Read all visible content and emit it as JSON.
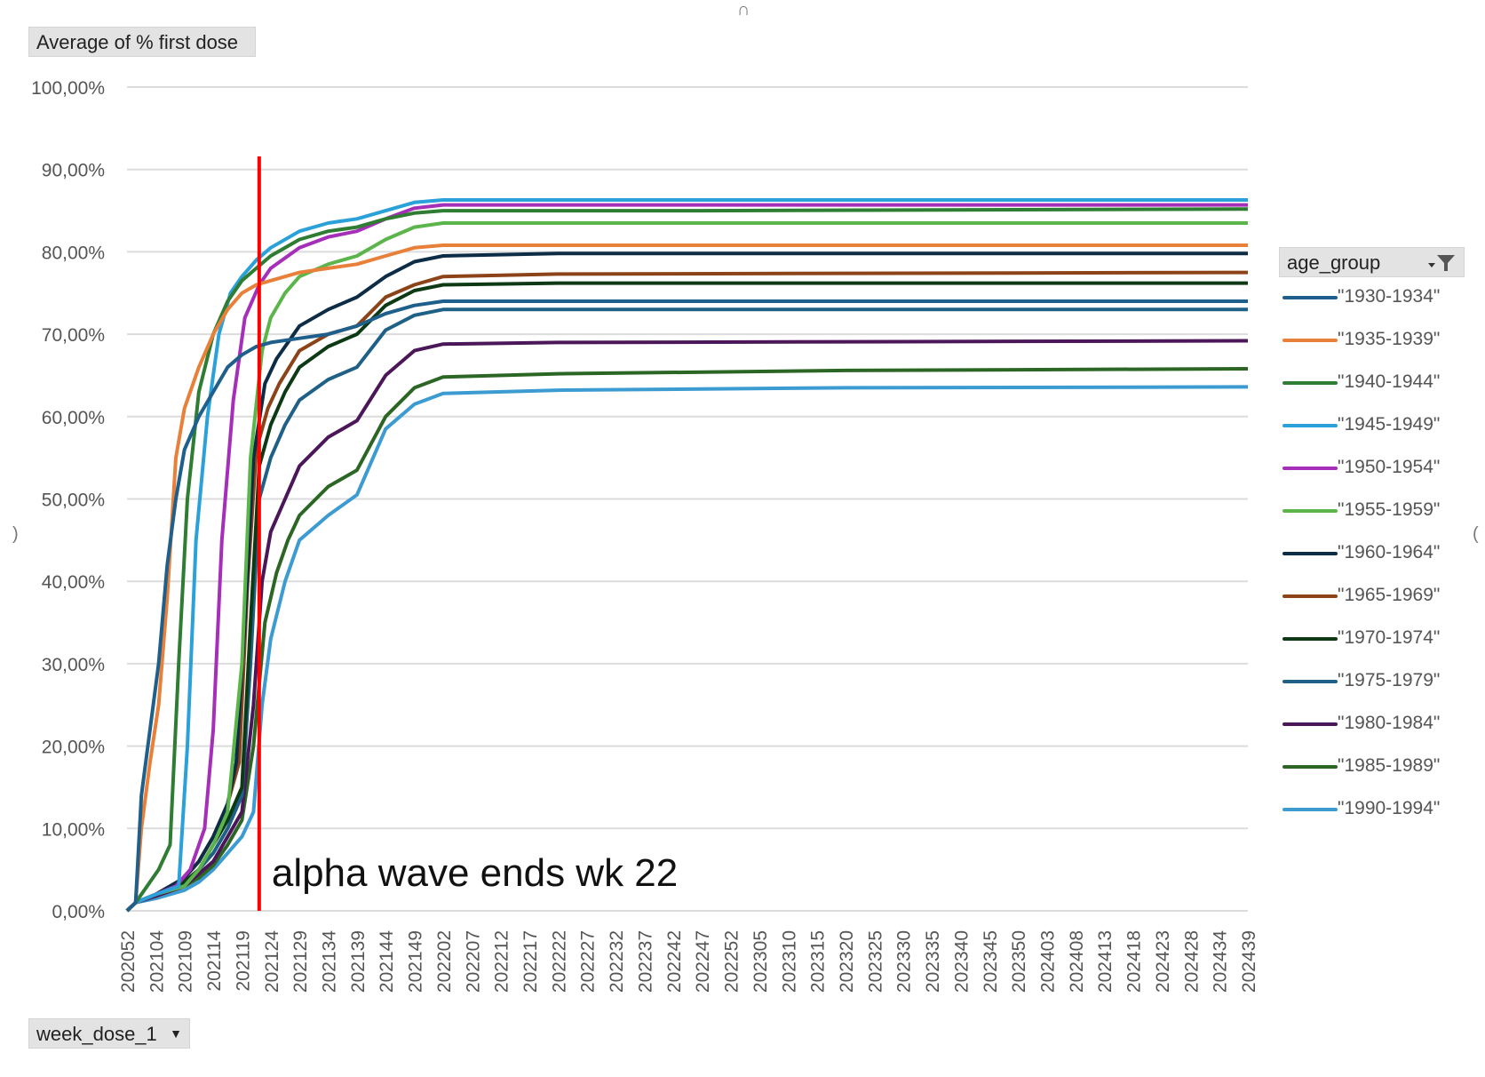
{
  "measure_label": "Average of % first dose",
  "xfield_label": "week_dose_1",
  "legend_title": "age_group",
  "annotation_text": "alpha wave ends wk 22",
  "chart_data": {
    "type": "line",
    "title": "",
    "xlabel": "",
    "ylabel": "",
    "ylim": [
      0,
      100
    ],
    "y_ticks": [
      "0,00%",
      "10,00%",
      "20,00%",
      "30,00%",
      "40,00%",
      "50,00%",
      "60,00%",
      "70,00%",
      "80,00%",
      "90,00%",
      "100,00%"
    ],
    "x_tick_labels": [
      "202052",
      "202104",
      "202109",
      "202114",
      "202119",
      "202124",
      "202129",
      "202134",
      "202139",
      "202144",
      "202149",
      "202202",
      "202207",
      "202212",
      "202217",
      "202222",
      "202227",
      "202232",
      "202237",
      "202242",
      "202247",
      "202252",
      "202305",
      "202310",
      "202315",
      "202320",
      "202325",
      "202330",
      "202335",
      "202340",
      "202345",
      "202350",
      "202403",
      "202408",
      "202413",
      "202418",
      "202423",
      "202428",
      "202434",
      "202439"
    ],
    "x_range_index": [
      0,
      39
    ],
    "grid": true,
    "legend_position": "right",
    "annotation": {
      "text": "alpha wave ends wk 22",
      "x_index": 4.6,
      "color": "#ff0000"
    },
    "series": [
      {
        "name": "\"1930-1934\"",
        "color": "#1f5f8b",
        "points": [
          [
            0,
            0
          ],
          [
            0.3,
            1
          ],
          [
            0.5,
            14
          ],
          [
            0.8,
            22
          ],
          [
            1.1,
            30
          ],
          [
            1.4,
            42
          ],
          [
            1.7,
            50
          ],
          [
            2,
            56
          ],
          [
            2.5,
            60
          ],
          [
            3,
            63
          ],
          [
            3.5,
            66
          ],
          [
            4,
            67.5
          ],
          [
            4.5,
            68.5
          ],
          [
            5,
            69
          ],
          [
            6,
            69.5
          ],
          [
            7,
            70
          ],
          [
            8,
            71
          ],
          [
            9,
            72.5
          ],
          [
            10,
            73.5
          ],
          [
            11,
            74
          ],
          [
            15,
            74
          ],
          [
            39,
            74
          ]
        ]
      },
      {
        "name": "\"1935-1939\"",
        "color": "#e8803a",
        "points": [
          [
            0,
            0
          ],
          [
            0.3,
            1
          ],
          [
            0.5,
            10
          ],
          [
            0.8,
            18
          ],
          [
            1.1,
            25
          ],
          [
            1.4,
            38
          ],
          [
            1.7,
            55
          ],
          [
            2,
            61
          ],
          [
            2.5,
            66
          ],
          [
            3,
            70
          ],
          [
            3.5,
            73
          ],
          [
            4,
            75
          ],
          [
            4.5,
            76
          ],
          [
            5,
            76.5
          ],
          [
            6,
            77.5
          ],
          [
            7,
            78
          ],
          [
            8,
            78.5
          ],
          [
            9,
            79.5
          ],
          [
            10,
            80.5
          ],
          [
            11,
            80.8
          ],
          [
            15,
            80.8
          ],
          [
            39,
            80.8
          ]
        ]
      },
      {
        "name": "\"1940-1944\"",
        "color": "#2e7d32",
        "points": [
          [
            0,
            0
          ],
          [
            0.3,
            1
          ],
          [
            0.7,
            3
          ],
          [
            1.1,
            5
          ],
          [
            1.5,
            8
          ],
          [
            1.8,
            30
          ],
          [
            2.1,
            50
          ],
          [
            2.5,
            63
          ],
          [
            3,
            70
          ],
          [
            3.5,
            74
          ],
          [
            4,
            76.5
          ],
          [
            4.5,
            78
          ],
          [
            5,
            79.5
          ],
          [
            6,
            81.5
          ],
          [
            7,
            82.5
          ],
          [
            8,
            83
          ],
          [
            9,
            84
          ],
          [
            10,
            84.7
          ],
          [
            11,
            85
          ],
          [
            20,
            85
          ],
          [
            39,
            85.2
          ]
        ]
      },
      {
        "name": "\"1945-1949\"",
        "color": "#2aa1d8",
        "points": [
          [
            0,
            0
          ],
          [
            0.3,
            1
          ],
          [
            1,
            2
          ],
          [
            1.8,
            3
          ],
          [
            2.1,
            20
          ],
          [
            2.4,
            45
          ],
          [
            2.8,
            60
          ],
          [
            3.2,
            70
          ],
          [
            3.6,
            75
          ],
          [
            4,
            77
          ],
          [
            4.5,
            79
          ],
          [
            5,
            80.5
          ],
          [
            6,
            82.5
          ],
          [
            7,
            83.5
          ],
          [
            8,
            84
          ],
          [
            9,
            85
          ],
          [
            10,
            86
          ],
          [
            11,
            86.3
          ],
          [
            39,
            86.3
          ]
        ]
      },
      {
        "name": "\"1950-1954\"",
        "color": "#a52fb8",
        "points": [
          [
            0,
            0
          ],
          [
            0.3,
            1
          ],
          [
            1,
            2
          ],
          [
            1.7,
            3
          ],
          [
            2.2,
            5
          ],
          [
            2.7,
            10
          ],
          [
            3.0,
            22
          ],
          [
            3.3,
            45
          ],
          [
            3.7,
            62
          ],
          [
            4.1,
            72
          ],
          [
            4.6,
            76
          ],
          [
            5,
            78
          ],
          [
            6,
            80.5
          ],
          [
            7,
            81.8
          ],
          [
            8,
            82.5
          ],
          [
            9,
            84
          ],
          [
            10,
            85.3
          ],
          [
            11,
            85.7
          ],
          [
            39,
            85.7
          ]
        ]
      },
      {
        "name": "\"1955-1959\"",
        "color": "#5cb54a",
        "points": [
          [
            0,
            0
          ],
          [
            0.3,
            1
          ],
          [
            1,
            2
          ],
          [
            2,
            3
          ],
          [
            2.5,
            5
          ],
          [
            3,
            8
          ],
          [
            3.5,
            12
          ],
          [
            4,
            30
          ],
          [
            4.3,
            55
          ],
          [
            4.7,
            68
          ],
          [
            5,
            72
          ],
          [
            5.5,
            75
          ],
          [
            6,
            77
          ],
          [
            7,
            78.5
          ],
          [
            8,
            79.5
          ],
          [
            9,
            81.5
          ],
          [
            10,
            83
          ],
          [
            11,
            83.5
          ],
          [
            39,
            83.5
          ]
        ]
      },
      {
        "name": "\"1960-1964\"",
        "color": "#0d2c45",
        "points": [
          [
            0,
            0
          ],
          [
            0.3,
            1
          ],
          [
            1,
            2
          ],
          [
            2,
            4
          ],
          [
            2.5,
            6
          ],
          [
            3,
            9
          ],
          [
            3.5,
            13
          ],
          [
            3.8,
            18
          ],
          [
            4.1,
            35
          ],
          [
            4.4,
            55
          ],
          [
            4.8,
            64
          ],
          [
            5.2,
            67
          ],
          [
            6,
            71
          ],
          [
            7,
            73
          ],
          [
            8,
            74.5
          ],
          [
            9,
            77
          ],
          [
            10,
            78.8
          ],
          [
            11,
            79.5
          ],
          [
            15,
            79.8
          ],
          [
            39,
            79.8
          ]
        ]
      },
      {
        "name": "\"1965-1969\"",
        "color": "#8c4318",
        "points": [
          [
            0,
            0
          ],
          [
            0.3,
            1
          ],
          [
            1,
            2
          ],
          [
            2,
            4
          ],
          [
            2.5,
            6
          ],
          [
            3,
            9
          ],
          [
            3.5,
            13
          ],
          [
            3.9,
            18
          ],
          [
            4.2,
            40
          ],
          [
            4.5,
            56
          ],
          [
            4.9,
            61
          ],
          [
            5.3,
            64
          ],
          [
            6,
            68
          ],
          [
            7,
            70
          ],
          [
            8,
            71
          ],
          [
            9,
            74.5
          ],
          [
            10,
            76
          ],
          [
            11,
            77
          ],
          [
            15,
            77.3
          ],
          [
            39,
            77.5
          ]
        ]
      },
      {
        "name": "\"1970-1974\"",
        "color": "#0d3a14",
        "points": [
          [
            0,
            0
          ],
          [
            0.3,
            1
          ],
          [
            1,
            2
          ],
          [
            2,
            3.5
          ],
          [
            2.5,
            5
          ],
          [
            3,
            8
          ],
          [
            3.5,
            11
          ],
          [
            4,
            15
          ],
          [
            4.3,
            35
          ],
          [
            4.6,
            54
          ],
          [
            5,
            59
          ],
          [
            5.5,
            63
          ],
          [
            6,
            66
          ],
          [
            7,
            68.5
          ],
          [
            8,
            70
          ],
          [
            9,
            73.5
          ],
          [
            10,
            75.3
          ],
          [
            11,
            76
          ],
          [
            15,
            76.2
          ],
          [
            39,
            76.2
          ]
        ]
      },
      {
        "name": "\"1975-1979\"",
        "color": "#1f6186",
        "points": [
          [
            0,
            0
          ],
          [
            0.3,
            1
          ],
          [
            1,
            2
          ],
          [
            2,
            3.5
          ],
          [
            2.5,
            5
          ],
          [
            3,
            7
          ],
          [
            3.5,
            10
          ],
          [
            4,
            14
          ],
          [
            4.3,
            30
          ],
          [
            4.6,
            50
          ],
          [
            5,
            55
          ],
          [
            5.5,
            59
          ],
          [
            6,
            62
          ],
          [
            7,
            64.5
          ],
          [
            8,
            66
          ],
          [
            9,
            70.5
          ],
          [
            10,
            72.3
          ],
          [
            11,
            73
          ],
          [
            39,
            73
          ]
        ]
      },
      {
        "name": "\"1980-1984\"",
        "color": "#4b1758",
        "points": [
          [
            0,
            0
          ],
          [
            0.3,
            1
          ],
          [
            1,
            1.8
          ],
          [
            2,
            3
          ],
          [
            2.5,
            4.5
          ],
          [
            3,
            6
          ],
          [
            3.5,
            9
          ],
          [
            4,
            12
          ],
          [
            4.4,
            25
          ],
          [
            4.7,
            40
          ],
          [
            5,
            46
          ],
          [
            5.5,
            50
          ],
          [
            6,
            54
          ],
          [
            7,
            57.5
          ],
          [
            8,
            59.5
          ],
          [
            9,
            65
          ],
          [
            10,
            68
          ],
          [
            11,
            68.8
          ],
          [
            15,
            69
          ],
          [
            39,
            69.2
          ]
        ]
      },
      {
        "name": "\"1985-1989\"",
        "color": "#2c6624",
        "points": [
          [
            0,
            0
          ],
          [
            0.3,
            1
          ],
          [
            1,
            1.8
          ],
          [
            2,
            3
          ],
          [
            2.5,
            4
          ],
          [
            3,
            5.5
          ],
          [
            3.5,
            8
          ],
          [
            4,
            11
          ],
          [
            4.4,
            20
          ],
          [
            4.8,
            35
          ],
          [
            5.2,
            41
          ],
          [
            5.6,
            45
          ],
          [
            6,
            48
          ],
          [
            7,
            51.5
          ],
          [
            8,
            53.5
          ],
          [
            9,
            60
          ],
          [
            10,
            63.5
          ],
          [
            11,
            64.8
          ],
          [
            15,
            65.2
          ],
          [
            25,
            65.6
          ],
          [
            39,
            65.8
          ]
        ]
      },
      {
        "name": "\"1990-1994\"",
        "color": "#3c9bd0",
        "points": [
          [
            0,
            0
          ],
          [
            0.3,
            1
          ],
          [
            1,
            1.5
          ],
          [
            2,
            2.5
          ],
          [
            2.5,
            3.5
          ],
          [
            3,
            5
          ],
          [
            3.5,
            7
          ],
          [
            4,
            9
          ],
          [
            4.4,
            12
          ],
          [
            4.7,
            25
          ],
          [
            5,
            33
          ],
          [
            5.5,
            40
          ],
          [
            6,
            45
          ],
          [
            7,
            48
          ],
          [
            8,
            50.5
          ],
          [
            9,
            58.5
          ],
          [
            10,
            61.5
          ],
          [
            11,
            62.8
          ],
          [
            15,
            63.2
          ],
          [
            25,
            63.5
          ],
          [
            39,
            63.6
          ]
        ]
      }
    ]
  }
}
